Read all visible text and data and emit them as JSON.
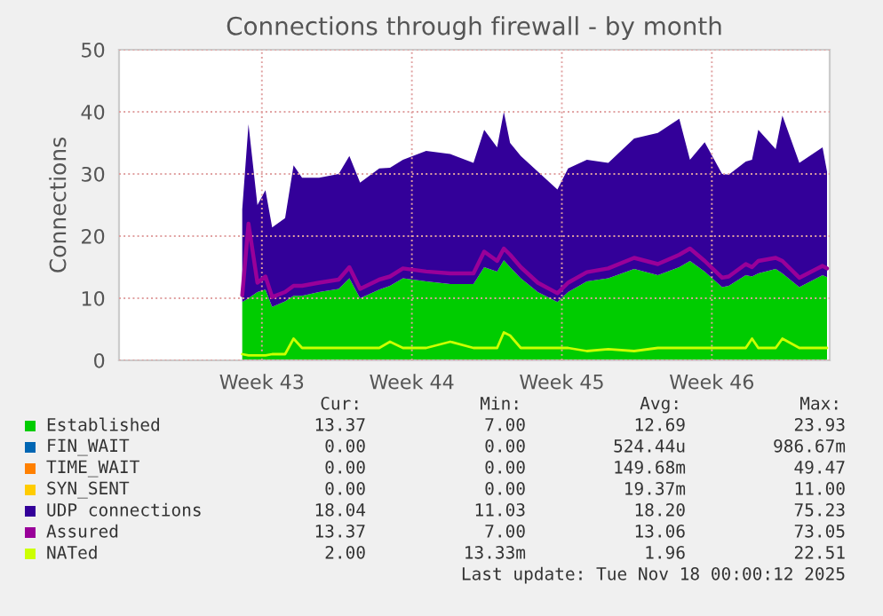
{
  "chart_data": {
    "type": "area",
    "stacked": true,
    "title": "Connections through firewall - by month",
    "ylabel": "Connections",
    "x": [
      "2025-10-22T14:00",
      "2025-10-22T21:00",
      "2025-10-23T07:00",
      "2025-10-23T16:00",
      "2025-10-23T23:30",
      "2025-10-24T14:00",
      "2025-10-24T23:30",
      "2025-10-25T09:00",
      "2025-10-26T04:00",
      "2025-10-27T02:00",
      "2025-10-27T14:00",
      "2025-10-28T02:00",
      "2025-10-28T23:30",
      "2025-10-29T11:30",
      "2025-10-30T02:00",
      "2025-10-31T04:00",
      "2025-11-01T07:00",
      "2025-11-02T09:00",
      "2025-11-02T21:00",
      "2025-11-03T11:30",
      "2025-11-03T19:00",
      "2025-11-04T02:00",
      "2025-11-04T14:00",
      "2025-11-05T09:00",
      "2025-11-06T07:00",
      "2025-11-06T19:00",
      "2025-11-07T16:00",
      "2025-11-08T16:00",
      "2025-11-09T21:00",
      "2025-11-10T23:30",
      "2025-11-11T23:30",
      "2025-11-12T11:30",
      "2025-11-13T04:00",
      "2025-11-13T23:30",
      "2025-11-14T07:00",
      "2025-11-15T02:00",
      "2025-11-15T09:00",
      "2025-11-15T16:00",
      "2025-11-16T11:30",
      "2025-11-16T19:00",
      "2025-11-17T14:00",
      "2025-11-18T16:00",
      "2025-11-18T21:00"
    ],
    "xlim": [
      "2025-10-16T20:00",
      "2025-11-19T00:00"
    ],
    "xticks": [
      {
        "value": "2025-10-23T12:00",
        "label": "Week 43"
      },
      {
        "value": "2025-10-30T12:00",
        "label": "Week 44"
      },
      {
        "value": "2025-11-06T12:00",
        "label": "Week 45"
      },
      {
        "value": "2025-11-13T12:00",
        "label": "Week 46"
      }
    ],
    "ylim": [
      0,
      50
    ],
    "yticks": [
      0,
      10,
      20,
      30,
      40,
      50
    ],
    "grid": true,
    "legend": "bottom",
    "series": [
      {
        "name": "Established",
        "color": "#00cc00",
        "values": [
          9.4,
          10,
          11,
          11.4,
          8.6,
          9.5,
          10.4,
          10.4,
          11,
          11.5,
          13.2,
          10,
          11.4,
          12,
          13.2,
          12.7,
          12.3,
          12.3,
          15,
          14.3,
          16.1,
          15,
          13.2,
          11,
          9.4,
          11,
          12.7,
          13.2,
          14.7,
          13.7,
          15,
          16,
          14.3,
          11.8,
          12,
          13.7,
          13.5,
          14,
          14.7,
          14,
          11.8,
          13.7,
          13.4
        ]
      },
      {
        "name": "FIN_WAIT",
        "color": "#0066b3",
        "values": [
          null,
          null,
          null,
          null,
          null,
          null,
          null,
          null,
          null,
          null,
          null,
          null,
          null,
          null,
          null,
          null,
          null,
          null,
          null,
          null,
          null,
          null,
          null,
          null,
          null,
          null,
          null,
          null,
          null,
          null,
          null,
          null,
          null,
          null,
          null,
          null,
          null,
          null,
          null,
          null,
          null,
          null,
          null
        ]
      },
      {
        "name": "TIME_WAIT",
        "color": "#ff8000",
        "values": [
          null,
          null,
          null,
          null,
          null,
          null,
          null,
          null,
          null,
          null,
          null,
          null,
          null,
          null,
          null,
          null,
          null,
          null,
          null,
          null,
          null,
          null,
          null,
          null,
          null,
          null,
          null,
          null,
          null,
          null,
          null,
          null,
          null,
          null,
          null,
          null,
          null,
          null,
          null,
          null,
          null,
          null,
          null
        ]
      },
      {
        "name": "SYN_SENT",
        "color": "#ffcc00",
        "values": [
          null,
          null,
          null,
          null,
          null,
          null,
          null,
          null,
          null,
          null,
          null,
          null,
          null,
          null,
          null,
          null,
          null,
          null,
          null,
          null,
          null,
          null,
          null,
          null,
          null,
          null,
          null,
          null,
          null,
          null,
          null,
          null,
          null,
          null,
          null,
          null,
          null,
          null,
          null,
          null,
          null,
          null,
          null
        ]
      },
      {
        "name": "UDP connections",
        "color": "#330099",
        "values": [
          14.9,
          28,
          14,
          16,
          12.8,
          13.4,
          21,
          19,
          18.4,
          18.5,
          19.7,
          18.6,
          19.5,
          19,
          19.1,
          21,
          20.9,
          19.5,
          22.1,
          20,
          23.9,
          20,
          19.7,
          19.4,
          18.1,
          19.9,
          19.6,
          18.6,
          21,
          22.9,
          23.9,
          16.3,
          20.8,
          18.2,
          17.9,
          18.3,
          18.8,
          23.1,
          19.3,
          25.4,
          20,
          20.6,
          17
        ]
      },
      {
        "name": "Assured",
        "color": "#990099",
        "type": "line",
        "values": [
          10.5,
          22,
          12.5,
          13.5,
          10.2,
          11,
          12,
          12,
          12.5,
          13,
          15,
          11.5,
          13,
          13.5,
          14.8,
          14.3,
          14,
          14,
          17.5,
          16,
          18,
          17,
          15,
          12.5,
          10.8,
          12.5,
          14.2,
          14.8,
          16.5,
          15.5,
          17,
          18,
          16,
          13.3,
          13.5,
          15.5,
          15,
          16,
          16.5,
          16,
          13.3,
          15.2,
          14.8
        ]
      },
      {
        "name": "NATed",
        "color": "#ccff00",
        "type": "line",
        "values": [
          1,
          0.8,
          0.8,
          0.8,
          1,
          1,
          3.5,
          2,
          2,
          2,
          2,
          2,
          2,
          3,
          2,
          2,
          3,
          2,
          2,
          2,
          4.5,
          4,
          2,
          2,
          2,
          2,
          1.5,
          1.8,
          1.5,
          2,
          2,
          2,
          2,
          2,
          2,
          2,
          3.5,
          2,
          2,
          3.5,
          2,
          2,
          2
        ]
      }
    ],
    "annotations": [
      "Cur:",
      "Min:",
      "Avg:",
      "Max:",
      "13.37",
      "7.00",
      "12.69",
      "23.93",
      "0.00",
      "0.00",
      "524.44u",
      "986.67m",
      "0.00",
      "0.00",
      "149.68m",
      "49.47",
      "0.00",
      "0.00",
      "19.37m",
      "11.00",
      "18.04",
      "11.03",
      "18.20",
      "75.23",
      "13.37",
      "7.00",
      "13.06",
      "73.05",
      "2.00",
      "13.33m",
      "1.96",
      "22.51",
      "Last update: Tue Nov 18 00:00:12 2025"
    ]
  }
}
